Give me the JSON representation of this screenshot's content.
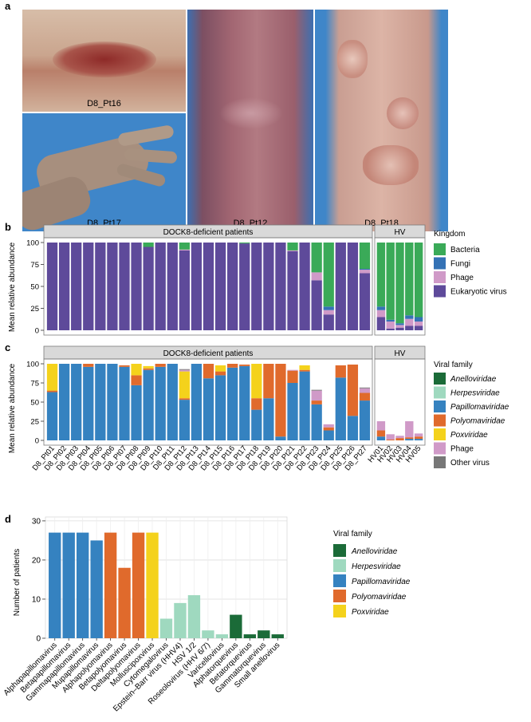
{
  "panel_a": {
    "label": "a",
    "photos": [
      {
        "caption": "D8_Pt16"
      },
      {
        "caption": "D8_Pt17"
      },
      {
        "caption": "D8_Pt12"
      },
      {
        "caption": "D8_Pt18"
      }
    ]
  },
  "panel_b": {
    "label": "b",
    "strip_dock": "DOCK8-deficient patients",
    "strip_hv": "HV",
    "ylabel": "Mean relative abundance",
    "legend_title": "Kingdom"
  },
  "panel_c": {
    "label": "c",
    "strip_dock": "DOCK8-deficient patients",
    "strip_hv": "HV",
    "ylabel": "Mean relative abundance",
    "legend_title": "Viral family"
  },
  "panel_d": {
    "label": "d",
    "ylabel": "Number of patients",
    "legend_title": "Viral family"
  },
  "chart_data": [
    {
      "id": "b",
      "type": "bar",
      "stacked": true,
      "ylim": [
        0,
        100
      ],
      "yticks": [
        0,
        25,
        50,
        75,
        100
      ],
      "facets": [
        "DOCK8-deficient patients",
        "HV"
      ],
      "legend": [
        {
          "name": "Bacteria",
          "color": "#3aaa58"
        },
        {
          "name": "Fungi",
          "color": "#3472b5"
        },
        {
          "name": "Phage",
          "color": "#d09ac8"
        },
        {
          "name": "Eukaryotic virus",
          "color": "#5e4a9a"
        }
      ],
      "categories": [
        "D8_Pt01",
        "D8_Pt02",
        "D8_Pt03",
        "D8_Pt04",
        "D8_Pt05",
        "D8_Pt06",
        "D8_Pt07",
        "D8_Pt08",
        "D8_Pt09",
        "D8_Pt10",
        "D8_Pt11",
        "D8_Pt12",
        "D8_Pt13",
        "D8_Pt14",
        "D8_Pt15",
        "D8_Pt16",
        "D8_Pt17",
        "D8_Pt18",
        "D8_Pt19",
        "D8_Pt20",
        "D8_Pt21",
        "D8_Pt22",
        "D8_Pt23",
        "D8_Pt24",
        "D8_Pt25",
        "D8_Pt26",
        "D8_Pt27",
        "HV01",
        "HV02",
        "HV03",
        "HV04",
        "HV05"
      ],
      "series": [
        {
          "name": "Eukaryotic virus",
          "values": [
            100,
            100,
            100,
            100,
            100,
            100,
            100,
            100,
            95,
            100,
            100,
            91,
            100,
            100,
            100,
            100,
            99,
            100,
            100,
            100,
            90,
            100,
            57,
            18,
            100,
            100,
            65,
            15,
            2,
            3,
            5,
            5
          ]
        },
        {
          "name": "Phage",
          "values": [
            0,
            0,
            0,
            0,
            0,
            0,
            0,
            0,
            0,
            0,
            0,
            1,
            0,
            0,
            0,
            0,
            0,
            0,
            0,
            0,
            1,
            0,
            9,
            5,
            0,
            0,
            4,
            8,
            8,
            3,
            8,
            5
          ]
        },
        {
          "name": "Fungi",
          "values": [
            0,
            0,
            0,
            0,
            0,
            0,
            0,
            0,
            0,
            0,
            0,
            0,
            0,
            0,
            0,
            0,
            0,
            0,
            0,
            0,
            0,
            0,
            0,
            4,
            0,
            0,
            1,
            4,
            2,
            2,
            4,
            5
          ]
        },
        {
          "name": "Bacteria",
          "values": [
            0,
            0,
            0,
            0,
            0,
            0,
            0,
            0,
            5,
            0,
            0,
            8,
            0,
            0,
            0,
            0,
            1,
            0,
            0,
            0,
            9,
            0,
            34,
            73,
            0,
            0,
            30,
            73,
            88,
            92,
            83,
            85
          ]
        }
      ]
    },
    {
      "id": "c",
      "type": "bar",
      "stacked": true,
      "ylim": [
        0,
        100
      ],
      "yticks": [
        0,
        25,
        50,
        75,
        100
      ],
      "facets": [
        "DOCK8-deficient patients",
        "HV"
      ],
      "legend": [
        {
          "name": "Anelloviridae",
          "color": "#1b6b38"
        },
        {
          "name": "Herpesviridae",
          "color": "#9fd9bf"
        },
        {
          "name": "Papillomaviridae",
          "color": "#3582c0"
        },
        {
          "name": "Polyomaviridae",
          "color": "#e06a2c"
        },
        {
          "name": "Poxviridae",
          "color": "#f4d21c"
        },
        {
          "name": "Phage",
          "color": "#d09ac8"
        },
        {
          "name": "Other virus",
          "color": "#777777"
        }
      ],
      "categories": [
        "D8_Pt01",
        "D8_Pt02",
        "D8_Pt03",
        "D8_Pt04",
        "D8_Pt05",
        "D8_Pt06",
        "D8_Pt07",
        "D8_Pt08",
        "D8_Pt09",
        "D8_Pt10",
        "D8_Pt11",
        "D8_Pt12",
        "D8_Pt13",
        "D8_Pt14",
        "D8_Pt15",
        "D8_Pt16",
        "D8_Pt17",
        "D8_Pt18",
        "D8_Pt19",
        "D8_Pt20",
        "D8_Pt21",
        "D8_Pt22",
        "D8_Pt23",
        "D8_Pt24",
        "D8_Pt25",
        "D8_Pt26",
        "D8_Pt27",
        "HV01",
        "HV02",
        "HV03",
        "HV04",
        "HV05"
      ],
      "series": [
        {
          "name": "Anelloviridae",
          "values": [
            0,
            0,
            0,
            0,
            0,
            0,
            0,
            0,
            0,
            0,
            0,
            0,
            0,
            0,
            0,
            0,
            0,
            0,
            0,
            0,
            0,
            0,
            0,
            0,
            0,
            0,
            0,
            0,
            0,
            0,
            0,
            0
          ]
        },
        {
          "name": "Herpesviridae",
          "values": [
            0,
            0,
            0,
            0,
            0,
            0,
            0,
            0,
            0,
            0,
            0,
            0,
            0,
            0,
            0,
            0,
            0,
            0,
            0,
            0,
            0,
            0,
            0,
            0,
            0,
            0,
            0,
            0,
            0,
            0,
            0,
            0
          ]
        },
        {
          "name": "Papillomaviridae",
          "values": [
            63,
            100,
            100,
            96,
            100,
            100,
            96,
            72,
            92,
            96,
            100,
            53,
            100,
            81,
            85,
            95,
            97,
            40,
            55,
            5,
            75,
            90,
            47,
            13,
            82,
            32,
            52,
            5,
            0,
            0,
            2,
            2
          ]
        },
        {
          "name": "Polyomaviridae",
          "values": [
            2,
            0,
            0,
            4,
            0,
            0,
            2,
            13,
            2,
            4,
            0,
            2,
            0,
            19,
            5,
            5,
            2,
            15,
            45,
            95,
            16,
            2,
            5,
            4,
            16,
            67,
            10,
            8,
            1,
            3,
            2,
            3
          ]
        },
        {
          "name": "Poxviridae",
          "values": [
            35,
            0,
            0,
            0,
            0,
            0,
            0,
            15,
            3,
            0,
            0,
            35,
            0,
            0,
            8,
            0,
            0,
            45,
            0,
            0,
            0,
            6,
            0,
            0,
            0,
            0,
            0,
            0,
            0,
            0,
            0,
            0
          ]
        },
        {
          "name": "Phage",
          "values": [
            0,
            0,
            0,
            0,
            0,
            0,
            0,
            0,
            0,
            0,
            0,
            2,
            0,
            0,
            0,
            0,
            0,
            0,
            0,
            0,
            1,
            0,
            13,
            4,
            0,
            0,
            6,
            12,
            7,
            3,
            21,
            4
          ]
        },
        {
          "name": "Other virus",
          "values": [
            0,
            0,
            0,
            0,
            0,
            0,
            0,
            0,
            0,
            0,
            0,
            1,
            0,
            0,
            0,
            0,
            0,
            0,
            0,
            0,
            0,
            0,
            1,
            0,
            0,
            0,
            1,
            0,
            0,
            0,
            0,
            0
          ]
        }
      ]
    },
    {
      "id": "d",
      "type": "bar",
      "ylim": [
        0,
        30
      ],
      "yticks": [
        0,
        10,
        20,
        30
      ],
      "grid": true,
      "legend": [
        {
          "name": "Anelloviridae",
          "color": "#1b6b38"
        },
        {
          "name": "Herpesviridae",
          "color": "#9fd9bf"
        },
        {
          "name": "Papillomaviridae",
          "color": "#3582c0"
        },
        {
          "name": "Polyomaviridae",
          "color": "#e06a2c"
        },
        {
          "name": "Poxviridae",
          "color": "#f4d21c"
        }
      ],
      "categories": [
        "Alphapapillomavirus",
        "Betapapillomavirus",
        "Gammapapillomavirus",
        "Mupapillomavirus",
        "Alphapolyomavirus",
        "Betapolyomavirus",
        "Deltapolyomavirus",
        "Molluscipoxvirus",
        "Cytomegalovirus",
        "Epstein–Barr virus (HHV4)",
        "HSV 1/2",
        "Roseolovirus (HHV 6/7)",
        "Varicellovirus",
        "Alphatorquevirus",
        "Betatorquevirus",
        "Gammatorquevirus",
        "Small anellovirus"
      ],
      "values": [
        27,
        27,
        27,
        25,
        27,
        18,
        27,
        27,
        5,
        9,
        11,
        2,
        1,
        6,
        1,
        2,
        1
      ],
      "families": [
        "Papillomaviridae",
        "Papillomaviridae",
        "Papillomaviridae",
        "Papillomaviridae",
        "Polyomaviridae",
        "Polyomaviridae",
        "Polyomaviridae",
        "Poxviridae",
        "Herpesviridae",
        "Herpesviridae",
        "Herpesviridae",
        "Herpesviridae",
        "Herpesviridae",
        "Anelloviridae",
        "Anelloviridae",
        "Anelloviridae",
        "Anelloviridae"
      ]
    }
  ]
}
